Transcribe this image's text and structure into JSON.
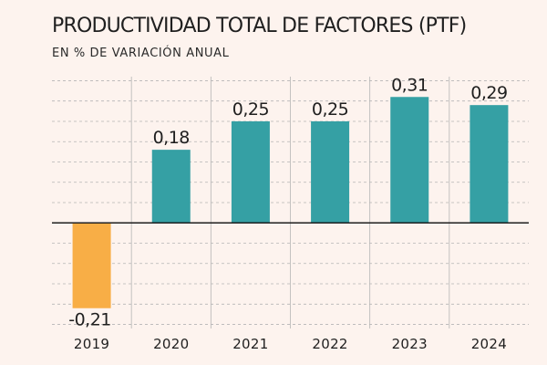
{
  "header": {
    "title": "PRODUCTIVIDAD TOTAL DE FACTORES (PTF)",
    "subtitle": "EN % DE VARIACIÓN ANUAL"
  },
  "colors": {
    "background": "#fdf3ee",
    "positive_bar": "#35a0a4",
    "negative_bar": "#f8ae46",
    "gridline": "#b5b5b5",
    "baseline": "#1f1f1f",
    "text": "#1f1f1f"
  },
  "chart_data": {
    "type": "bar",
    "title": "PRODUCTIVIDAD TOTAL DE FACTORES (PTF)",
    "subtitle": "EN % DE VARIACIÓN ANUAL",
    "xlabel": "",
    "ylabel": "",
    "categories": [
      "2019",
      "2020",
      "2021",
      "2022",
      "2023",
      "2024"
    ],
    "values": [
      -0.21,
      0.18,
      0.25,
      0.25,
      0.31,
      0.29
    ],
    "value_labels": [
      "-0,21",
      "0,18",
      "0,25",
      "0,25",
      "0,31",
      "0,29"
    ],
    "ylim": [
      -0.26,
      0.36
    ],
    "grid": true,
    "legend": "none"
  }
}
